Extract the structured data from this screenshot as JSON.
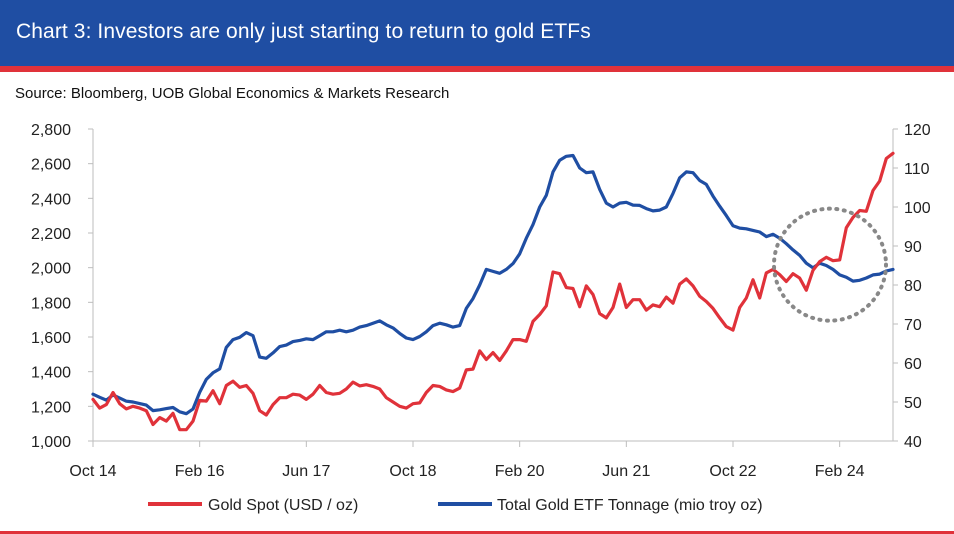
{
  "header": {
    "title": "Chart 3: Investors are only just starting to return to gold ETFs",
    "source": "Source: Bloomberg, UOB Global Economics & Markets Research"
  },
  "colors": {
    "header_bg": "#1f4ea3",
    "accent_red": "#e0323a",
    "series_gold": "#e0323a",
    "series_etf": "#1f4ea3",
    "annotation": "#888888"
  },
  "chart_data": {
    "type": "line",
    "x_range": [
      "2014-10",
      "2024-10"
    ],
    "x_tick_labels": [
      "Oct 14",
      "Feb 16",
      "Jun 17",
      "Oct 18",
      "Feb 20",
      "Jun 21",
      "Oct 22",
      "Feb 24"
    ],
    "x_tick_dates": [
      "2014-10",
      "2016-02",
      "2017-06",
      "2018-10",
      "2020-02",
      "2021-06",
      "2022-10",
      "2024-02"
    ],
    "y_left": {
      "min": 1000,
      "max": 2800,
      "ticks": [
        "1,000",
        "1,200",
        "1,400",
        "1,600",
        "1,800",
        "2,000",
        "2,200",
        "2,400",
        "2,600",
        "2,800"
      ]
    },
    "y_right": {
      "min": 40,
      "max": 120,
      "ticks": [
        "40",
        "50",
        "60",
        "70",
        "80",
        "90",
        "100",
        "110",
        "120"
      ]
    },
    "grid": false,
    "legend_position": "bottom",
    "series": [
      {
        "name": "Gold Spot (USD / oz)",
        "axis": "left",
        "points": [
          [
            "2014-10",
            1240
          ],
          [
            "2014-11",
            1190
          ],
          [
            "2014-12",
            1210
          ],
          [
            "2015-01",
            1280
          ],
          [
            "2015-02",
            1215
          ],
          [
            "2015-03",
            1185
          ],
          [
            "2015-04",
            1200
          ],
          [
            "2015-05",
            1190
          ],
          [
            "2015-06",
            1175
          ],
          [
            "2015-07",
            1095
          ],
          [
            "2015-08",
            1135
          ],
          [
            "2015-09",
            1115
          ],
          [
            "2015-10",
            1160
          ],
          [
            "2015-11",
            1065
          ],
          [
            "2015-12",
            1065
          ],
          [
            "2016-01",
            1115
          ],
          [
            "2016-02",
            1235
          ],
          [
            "2016-03",
            1230
          ],
          [
            "2016-04",
            1290
          ],
          [
            "2016-05",
            1215
          ],
          [
            "2016-06",
            1320
          ],
          [
            "2016-07",
            1345
          ],
          [
            "2016-08",
            1310
          ],
          [
            "2016-09",
            1320
          ],
          [
            "2016-10",
            1275
          ],
          [
            "2016-11",
            1175
          ],
          [
            "2016-12",
            1150
          ],
          [
            "2017-01",
            1210
          ],
          [
            "2017-02",
            1250
          ],
          [
            "2017-03",
            1250
          ],
          [
            "2017-04",
            1270
          ],
          [
            "2017-05",
            1265
          ],
          [
            "2017-06",
            1240
          ],
          [
            "2017-07",
            1270
          ],
          [
            "2017-08",
            1320
          ],
          [
            "2017-09",
            1280
          ],
          [
            "2017-10",
            1270
          ],
          [
            "2017-11",
            1275
          ],
          [
            "2017-12",
            1300
          ],
          [
            "2018-01",
            1340
          ],
          [
            "2018-02",
            1318
          ],
          [
            "2018-03",
            1325
          ],
          [
            "2018-04",
            1315
          ],
          [
            "2018-05",
            1300
          ],
          [
            "2018-06",
            1250
          ],
          [
            "2018-07",
            1225
          ],
          [
            "2018-08",
            1200
          ],
          [
            "2018-09",
            1190
          ],
          [
            "2018-10",
            1215
          ],
          [
            "2018-11",
            1220
          ],
          [
            "2018-12",
            1280
          ],
          [
            "2019-01",
            1320
          ],
          [
            "2019-02",
            1315
          ],
          [
            "2019-03",
            1295
          ],
          [
            "2019-04",
            1285
          ],
          [
            "2019-05",
            1305
          ],
          [
            "2019-06",
            1410
          ],
          [
            "2019-07",
            1415
          ],
          [
            "2019-08",
            1520
          ],
          [
            "2019-09",
            1470
          ],
          [
            "2019-10",
            1510
          ],
          [
            "2019-11",
            1465
          ],
          [
            "2019-12",
            1520
          ],
          [
            "2020-01",
            1585
          ],
          [
            "2020-02",
            1585
          ],
          [
            "2020-03",
            1575
          ],
          [
            "2020-04",
            1690
          ],
          [
            "2020-05",
            1730
          ],
          [
            "2020-06",
            1780
          ],
          [
            "2020-07",
            1975
          ],
          [
            "2020-08",
            1965
          ],
          [
            "2020-09",
            1885
          ],
          [
            "2020-10",
            1880
          ],
          [
            "2020-11",
            1775
          ],
          [
            "2020-12",
            1895
          ],
          [
            "2021-01",
            1845
          ],
          [
            "2021-02",
            1735
          ],
          [
            "2021-03",
            1710
          ],
          [
            "2021-04",
            1770
          ],
          [
            "2021-05",
            1905
          ],
          [
            "2021-06",
            1770
          ],
          [
            "2021-07",
            1815
          ],
          [
            "2021-08",
            1815
          ],
          [
            "2021-09",
            1755
          ],
          [
            "2021-10",
            1785
          ],
          [
            "2021-11",
            1775
          ],
          [
            "2021-12",
            1830
          ],
          [
            "2022-01",
            1795
          ],
          [
            "2022-02",
            1905
          ],
          [
            "2022-03",
            1935
          ],
          [
            "2022-04",
            1895
          ],
          [
            "2022-05",
            1835
          ],
          [
            "2022-06",
            1805
          ],
          [
            "2022-07",
            1765
          ],
          [
            "2022-08",
            1710
          ],
          [
            "2022-09",
            1660
          ],
          [
            "2022-10",
            1640
          ],
          [
            "2022-11",
            1770
          ],
          [
            "2022-12",
            1825
          ],
          [
            "2023-01",
            1930
          ],
          [
            "2023-02",
            1825
          ],
          [
            "2023-03",
            1970
          ],
          [
            "2023-04",
            1990
          ],
          [
            "2023-05",
            1960
          ],
          [
            "2023-06",
            1920
          ],
          [
            "2023-07",
            1965
          ],
          [
            "2023-08",
            1940
          ],
          [
            "2023-09",
            1870
          ],
          [
            "2023-10",
            1985
          ],
          [
            "2023-11",
            2035
          ],
          [
            "2023-12",
            2060
          ],
          [
            "2024-01",
            2040
          ],
          [
            "2024-02",
            2045
          ],
          [
            "2024-03",
            2230
          ],
          [
            "2024-04",
            2290
          ],
          [
            "2024-05",
            2330
          ],
          [
            "2024-06",
            2325
          ],
          [
            "2024-07",
            2445
          ],
          [
            "2024-08",
            2500
          ],
          [
            "2024-09",
            2630
          ],
          [
            "2024-10",
            2660
          ]
        ]
      },
      {
        "name": "Total Gold ETF Tonnage (mio troy oz)",
        "axis": "right",
        "points": [
          [
            "2014-10",
            52.0
          ],
          [
            "2014-11",
            51.2
          ],
          [
            "2014-12",
            50.5
          ],
          [
            "2015-01",
            51.8
          ],
          [
            "2015-02",
            51.0
          ],
          [
            "2015-03",
            50.2
          ],
          [
            "2015-04",
            50.0
          ],
          [
            "2015-05",
            49.6
          ],
          [
            "2015-06",
            49.2
          ],
          [
            "2015-07",
            47.8
          ],
          [
            "2015-08",
            48.0
          ],
          [
            "2015-09",
            48.3
          ],
          [
            "2015-10",
            48.6
          ],
          [
            "2015-11",
            47.5
          ],
          [
            "2015-12",
            47.0
          ],
          [
            "2016-01",
            48.2
          ],
          [
            "2016-02",
            52.5
          ],
          [
            "2016-03",
            55.8
          ],
          [
            "2016-04",
            57.5
          ],
          [
            "2016-05",
            58.5
          ],
          [
            "2016-06",
            64.0
          ],
          [
            "2016-07",
            66.0
          ],
          [
            "2016-08",
            66.6
          ],
          [
            "2016-09",
            67.8
          ],
          [
            "2016-10",
            67.0
          ],
          [
            "2016-11",
            61.5
          ],
          [
            "2016-12",
            61.2
          ],
          [
            "2017-01",
            62.6
          ],
          [
            "2017-02",
            64.2
          ],
          [
            "2017-03",
            64.6
          ],
          [
            "2017-04",
            65.5
          ],
          [
            "2017-05",
            65.8
          ],
          [
            "2017-06",
            66.2
          ],
          [
            "2017-07",
            66.0
          ],
          [
            "2017-08",
            67.0
          ],
          [
            "2017-09",
            68.0
          ],
          [
            "2017-10",
            68.0
          ],
          [
            "2017-11",
            68.4
          ],
          [
            "2017-12",
            68.0
          ],
          [
            "2018-01",
            68.4
          ],
          [
            "2018-02",
            69.2
          ],
          [
            "2018-03",
            69.6
          ],
          [
            "2018-04",
            70.2
          ],
          [
            "2018-05",
            70.8
          ],
          [
            "2018-06",
            69.8
          ],
          [
            "2018-07",
            69.0
          ],
          [
            "2018-08",
            67.6
          ],
          [
            "2018-09",
            66.4
          ],
          [
            "2018-10",
            66.0
          ],
          [
            "2018-11",
            66.8
          ],
          [
            "2018-12",
            68.0
          ],
          [
            "2019-01",
            69.6
          ],
          [
            "2019-02",
            70.2
          ],
          [
            "2019-03",
            69.8
          ],
          [
            "2019-04",
            69.2
          ],
          [
            "2019-05",
            69.6
          ],
          [
            "2019-06",
            74.0
          ],
          [
            "2019-07",
            76.5
          ],
          [
            "2019-08",
            80.0
          ],
          [
            "2019-09",
            84.0
          ],
          [
            "2019-10",
            83.5
          ],
          [
            "2019-11",
            83.0
          ],
          [
            "2019-12",
            84.0
          ],
          [
            "2020-01",
            85.5
          ],
          [
            "2020-02",
            88.0
          ],
          [
            "2020-03",
            92.0
          ],
          [
            "2020-04",
            95.5
          ],
          [
            "2020-05",
            100.0
          ],
          [
            "2020-06",
            103.0
          ],
          [
            "2020-07",
            109.0
          ],
          [
            "2020-08",
            112.0
          ],
          [
            "2020-09",
            113.0
          ],
          [
            "2020-10",
            113.2
          ],
          [
            "2020-11",
            110.0
          ],
          [
            "2020-12",
            108.8
          ],
          [
            "2021-01",
            109.0
          ],
          [
            "2021-02",
            104.5
          ],
          [
            "2021-03",
            101.0
          ],
          [
            "2021-04",
            100.0
          ],
          [
            "2021-05",
            101.0
          ],
          [
            "2021-06",
            101.2
          ],
          [
            "2021-07",
            100.5
          ],
          [
            "2021-08",
            100.4
          ],
          [
            "2021-09",
            99.6
          ],
          [
            "2021-10",
            99.0
          ],
          [
            "2021-11",
            99.2
          ],
          [
            "2021-12",
            100.0
          ],
          [
            "2022-01",
            103.5
          ],
          [
            "2022-02",
            107.5
          ],
          [
            "2022-03",
            109.0
          ],
          [
            "2022-04",
            108.8
          ],
          [
            "2022-05",
            106.8
          ],
          [
            "2022-06",
            105.8
          ],
          [
            "2022-07",
            102.8
          ],
          [
            "2022-08",
            100.2
          ],
          [
            "2022-09",
            97.8
          ],
          [
            "2022-10",
            95.2
          ],
          [
            "2022-11",
            94.6
          ],
          [
            "2022-12",
            94.4
          ],
          [
            "2023-01",
            94.0
          ],
          [
            "2023-02",
            93.6
          ],
          [
            "2023-03",
            92.4
          ],
          [
            "2023-04",
            93.0
          ],
          [
            "2023-05",
            92.0
          ],
          [
            "2023-06",
            90.6
          ],
          [
            "2023-07",
            89.0
          ],
          [
            "2023-08",
            87.6
          ],
          [
            "2023-09",
            85.6
          ],
          [
            "2023-10",
            84.4
          ],
          [
            "2023-11",
            85.6
          ],
          [
            "2023-12",
            85.0
          ],
          [
            "2024-01",
            84.0
          ],
          [
            "2024-02",
            82.6
          ],
          [
            "2024-03",
            82.0
          ],
          [
            "2024-04",
            81.0
          ],
          [
            "2024-05",
            81.2
          ],
          [
            "2024-06",
            81.8
          ],
          [
            "2024-07",
            82.6
          ],
          [
            "2024-08",
            82.8
          ],
          [
            "2024-09",
            83.6
          ],
          [
            "2024-10",
            84.0
          ]
        ]
      }
    ],
    "annotation": {
      "type": "dotted-circle",
      "center": [
        "2024-01",
        2000
      ],
      "around": "recent ETF turn and gold surge"
    }
  }
}
